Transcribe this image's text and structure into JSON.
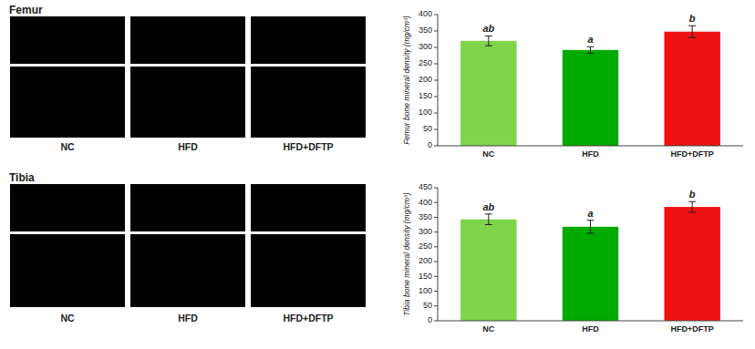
{
  "chart_data": [
    {
      "type": "bar",
      "title": "Femur",
      "categories": [
        "NC",
        "HFD",
        "HFD+DFTP"
      ],
      "values": [
        320,
        292,
        348
      ],
      "errors": [
        15,
        10,
        18
      ],
      "annotations": [
        "ab",
        "a",
        "b"
      ],
      "colors": [
        "#7FD44B",
        "#00AA00",
        "#EE1111"
      ],
      "ylabel": "Femur bone mineral density (mg/cm³)",
      "ylim": [
        0,
        400
      ],
      "yticks": [
        0,
        50,
        100,
        150,
        200,
        250,
        300,
        350,
        400
      ],
      "grid": false
    },
    {
      "type": "bar",
      "title": "Tibia",
      "categories": [
        "NC",
        "HFD",
        "HFD+DFTP"
      ],
      "values": [
        343,
        318,
        385
      ],
      "errors": [
        18,
        22,
        18
      ],
      "annotations": [
        "ab",
        "a",
        "b"
      ],
      "colors": [
        "#7FD44B",
        "#00AA00",
        "#EE1111"
      ],
      "ylabel": "Tibia bone mineral density (mg/cm³)",
      "ylim": [
        0,
        450
      ],
      "yticks": [
        0,
        50,
        100,
        150,
        200,
        250,
        300,
        350,
        400,
        450
      ],
      "grid": false
    }
  ]
}
